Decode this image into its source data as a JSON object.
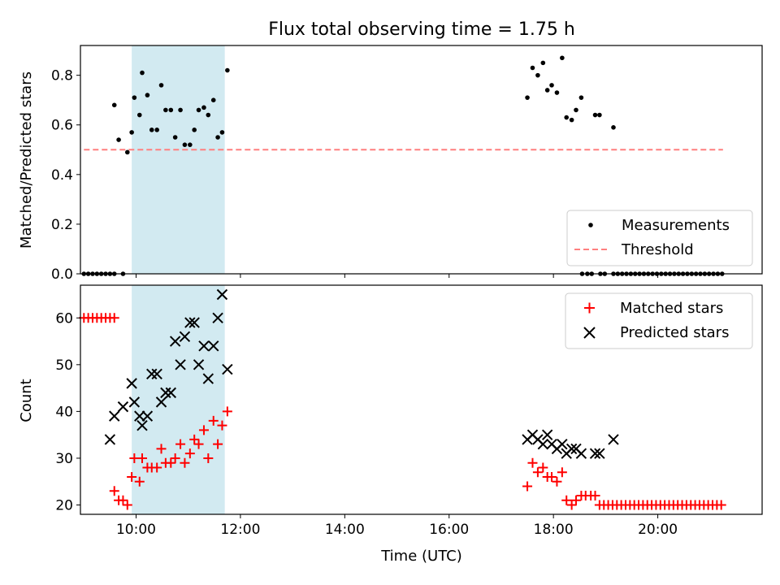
{
  "chart_data": [
    {
      "type": "scatter",
      "title": "Flux total observing time = 1.75 h",
      "xlabel": "",
      "ylabel": "Matched/Predicted stars",
      "xlim": [
        "08:56",
        "22:00"
      ],
      "ylim": [
        0,
        0.92
      ],
      "yticks": [
        "0.0",
        "0.2",
        "0.4",
        "0.6",
        "0.8"
      ],
      "highlight": {
        "start": "09:55",
        "end": "11:42",
        "color": "#add8e6"
      },
      "threshold": {
        "name": "Threshold",
        "value": 0.5,
        "x_start": "09:00",
        "x_end": "21:15",
        "color": "#ff7f7f"
      },
      "legend_position": "lower right",
      "series": [
        {
          "name": "Measurements",
          "color": "#000000",
          "points": [
            [
              "09:00",
              0
            ],
            [
              "09:05",
              0
            ],
            [
              "09:10",
              0
            ],
            [
              "09:15",
              0
            ],
            [
              "09:20",
              0
            ],
            [
              "09:25",
              0
            ],
            [
              "09:30",
              0
            ],
            [
              "09:35",
              0
            ],
            [
              "09:45",
              0
            ],
            [
              "09:35",
              0.68
            ],
            [
              "09:40",
              0.54
            ],
            [
              "09:50",
              0.49
            ],
            [
              "09:55",
              0.57
            ],
            [
              "09:58",
              0.71
            ],
            [
              "10:04",
              0.64
            ],
            [
              "10:07",
              0.81
            ],
            [
              "10:13",
              0.72
            ],
            [
              "10:18",
              0.58
            ],
            [
              "10:24",
              0.58
            ],
            [
              "10:29",
              0.76
            ],
            [
              "10:34",
              0.66
            ],
            [
              "10:40",
              0.66
            ],
            [
              "10:45",
              0.55
            ],
            [
              "10:51",
              0.66
            ],
            [
              "10:56",
              0.52
            ],
            [
              "11:02",
              0.52
            ],
            [
              "11:07",
              0.58
            ],
            [
              "11:12",
              0.66
            ],
            [
              "11:18",
              0.67
            ],
            [
              "11:23",
              0.64
            ],
            [
              "11:29",
              0.7
            ],
            [
              "11:34",
              0.55
            ],
            [
              "11:39",
              0.57
            ],
            [
              "11:45",
              0.82
            ],
            [
              "17:30",
              0.71
            ],
            [
              "17:36",
              0.83
            ],
            [
              "17:42",
              0.8
            ],
            [
              "17:48",
              0.85
            ],
            [
              "17:53",
              0.74
            ],
            [
              "17:58",
              0.76
            ],
            [
              "18:04",
              0.73
            ],
            [
              "18:10",
              0.87
            ],
            [
              "18:15",
              0.63
            ],
            [
              "18:21",
              0.62
            ],
            [
              "18:26",
              0.66
            ],
            [
              "18:32",
              0.71
            ],
            [
              "18:48",
              0.64
            ],
            [
              "18:53",
              0.64
            ],
            [
              "19:09",
              0.59
            ],
            [
              "18:33",
              0
            ],
            [
              "18:39",
              0
            ],
            [
              "18:44",
              0
            ],
            [
              "18:54",
              0
            ],
            [
              "18:59",
              0
            ],
            [
              "19:09",
              0
            ],
            [
              "19:14",
              0
            ],
            [
              "19:19",
              0
            ],
            [
              "19:24",
              0
            ],
            [
              "19:29",
              0
            ],
            [
              "19:34",
              0
            ],
            [
              "19:39",
              0
            ],
            [
              "19:44",
              0
            ],
            [
              "19:49",
              0
            ],
            [
              "19:54",
              0
            ],
            [
              "19:59",
              0
            ],
            [
              "20:04",
              0
            ],
            [
              "20:09",
              0
            ],
            [
              "20:14",
              0
            ],
            [
              "20:19",
              0
            ],
            [
              "20:24",
              0
            ],
            [
              "20:29",
              0
            ],
            [
              "20:34",
              0
            ],
            [
              "20:39",
              0
            ],
            [
              "20:44",
              0
            ],
            [
              "20:49",
              0
            ],
            [
              "20:54",
              0
            ],
            [
              "20:59",
              0
            ],
            [
              "21:04",
              0
            ],
            [
              "21:09",
              0
            ],
            [
              "21:14",
              0
            ]
          ]
        }
      ]
    },
    {
      "type": "scatter",
      "xlabel": "Time (UTC)",
      "ylabel": "Count",
      "xlim": [
        "08:56",
        "22:00"
      ],
      "ylim": [
        18,
        67
      ],
      "yticks": [
        "20",
        "30",
        "40",
        "50",
        "60"
      ],
      "xticks": [
        "10:00",
        "12:00",
        "14:00",
        "16:00",
        "18:00",
        "20:00"
      ],
      "highlight": {
        "start": "09:55",
        "end": "11:42",
        "color": "#add8e6"
      },
      "legend_position": "upper right",
      "series": [
        {
          "name": "Matched stars",
          "marker": "+",
          "color": "#ff0000",
          "points": [
            [
              "09:00",
              60
            ],
            [
              "09:05",
              60
            ],
            [
              "09:10",
              60
            ],
            [
              "09:15",
              60
            ],
            [
              "09:20",
              60
            ],
            [
              "09:25",
              60
            ],
            [
              "09:30",
              60
            ],
            [
              "09:35",
              60
            ],
            [
              "09:35",
              23
            ],
            [
              "09:40",
              21
            ],
            [
              "09:45",
              21
            ],
            [
              "09:50",
              20
            ],
            [
              "09:55",
              26
            ],
            [
              "09:58",
              30
            ],
            [
              "10:04",
              25
            ],
            [
              "10:07",
              30
            ],
            [
              "10:13",
              28
            ],
            [
              "10:18",
              28
            ],
            [
              "10:24",
              28
            ],
            [
              "10:29",
              32
            ],
            [
              "10:34",
              29
            ],
            [
              "10:40",
              29
            ],
            [
              "10:45",
              30
            ],
            [
              "10:51",
              33
            ],
            [
              "10:56",
              29
            ],
            [
              "11:02",
              31
            ],
            [
              "11:07",
              34
            ],
            [
              "11:12",
              33
            ],
            [
              "11:18",
              36
            ],
            [
              "11:23",
              30
            ],
            [
              "11:29",
              38
            ],
            [
              "11:34",
              33
            ],
            [
              "11:39",
              37
            ],
            [
              "11:45",
              40
            ],
            [
              "17:30",
              24
            ],
            [
              "17:36",
              29
            ],
            [
              "17:42",
              27
            ],
            [
              "17:48",
              28
            ],
            [
              "17:53",
              26
            ],
            [
              "17:58",
              26
            ],
            [
              "18:04",
              25
            ],
            [
              "18:10",
              27
            ],
            [
              "18:15",
              21
            ],
            [
              "18:21",
              20
            ],
            [
              "18:26",
              21
            ],
            [
              "18:32",
              22
            ],
            [
              "18:37",
              22
            ],
            [
              "18:43",
              22
            ],
            [
              "18:48",
              22
            ],
            [
              "18:53",
              20
            ],
            [
              "18:58",
              20
            ],
            [
              "19:03",
              20
            ],
            [
              "19:08",
              20
            ],
            [
              "19:13",
              20
            ],
            [
              "19:18",
              20
            ],
            [
              "19:23",
              20
            ],
            [
              "19:28",
              20
            ],
            [
              "19:33",
              20
            ],
            [
              "19:38",
              20
            ],
            [
              "19:43",
              20
            ],
            [
              "19:48",
              20
            ],
            [
              "19:53",
              20
            ],
            [
              "19:58",
              20
            ],
            [
              "20:03",
              20
            ],
            [
              "20:08",
              20
            ],
            [
              "20:13",
              20
            ],
            [
              "20:18",
              20
            ],
            [
              "20:23",
              20
            ],
            [
              "20:28",
              20
            ],
            [
              "20:33",
              20
            ],
            [
              "20:38",
              20
            ],
            [
              "20:43",
              20
            ],
            [
              "20:48",
              20
            ],
            [
              "20:53",
              20
            ],
            [
              "20:58",
              20
            ],
            [
              "21:03",
              20
            ],
            [
              "21:08",
              20
            ],
            [
              "21:13",
              20
            ]
          ]
        },
        {
          "name": "Predicted stars",
          "marker": "x",
          "color": "#000000",
          "points": [
            [
              "09:30",
              34
            ],
            [
              "09:35",
              39
            ],
            [
              "09:45",
              41
            ],
            [
              "09:55",
              46
            ],
            [
              "09:58",
              42
            ],
            [
              "10:04",
              39
            ],
            [
              "10:07",
              37
            ],
            [
              "10:13",
              39
            ],
            [
              "10:18",
              48
            ],
            [
              "10:24",
              48
            ],
            [
              "10:29",
              42
            ],
            [
              "10:34",
              44
            ],
            [
              "10:40",
              44
            ],
            [
              "10:45",
              55
            ],
            [
              "10:51",
              50
            ],
            [
              "10:56",
              56
            ],
            [
              "11:02",
              59
            ],
            [
              "11:07",
              59
            ],
            [
              "11:12",
              50
            ],
            [
              "11:18",
              54
            ],
            [
              "11:23",
              47
            ],
            [
              "11:29",
              54
            ],
            [
              "11:34",
              60
            ],
            [
              "11:39",
              65
            ],
            [
              "11:45",
              49
            ],
            [
              "17:30",
              34
            ],
            [
              "17:36",
              35
            ],
            [
              "17:42",
              34
            ],
            [
              "17:48",
              33
            ],
            [
              "17:53",
              35
            ],
            [
              "17:58",
              33
            ],
            [
              "18:04",
              32
            ],
            [
              "18:10",
              33
            ],
            [
              "18:15",
              31
            ],
            [
              "18:21",
              32
            ],
            [
              "18:26",
              32
            ],
            [
              "18:32",
              31
            ],
            [
              "18:48",
              31
            ],
            [
              "18:53",
              31
            ],
            [
              "19:09",
              34
            ]
          ]
        }
      ]
    }
  ]
}
